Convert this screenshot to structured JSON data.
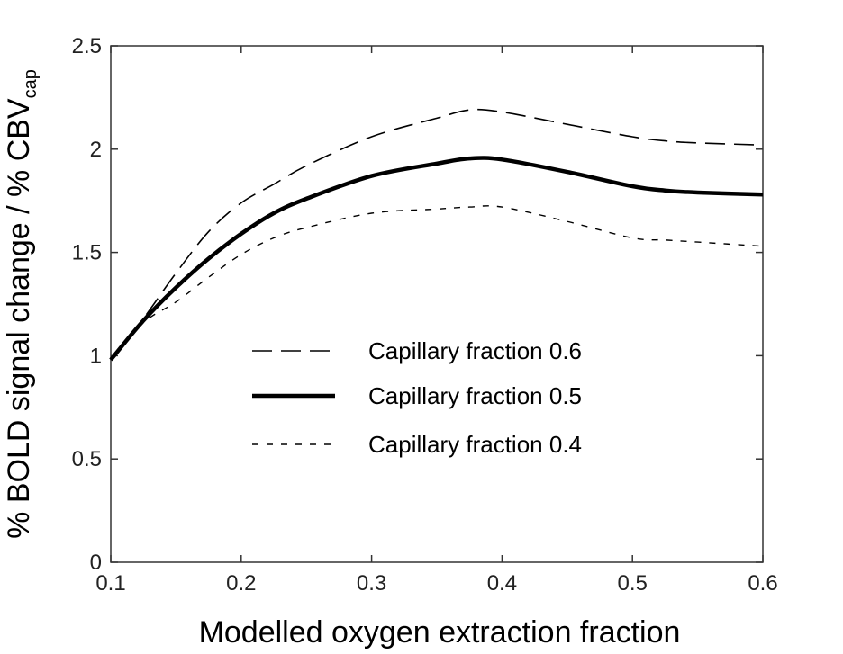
{
  "chart_data": {
    "type": "line",
    "title": "",
    "xlabel": "Modelled oxygen extraction fraction",
    "ylabel": "% BOLD signal change / % CBV",
    "ylabel_subscript": "cap",
    "xlim": [
      0.1,
      0.6
    ],
    "ylim": [
      0,
      2.5
    ],
    "xticks": [
      "0.1",
      "0.2",
      "0.3",
      "0.4",
      "0.5",
      "0.6"
    ],
    "yticks": [
      "0",
      "0.5",
      "1",
      "1.5",
      "2",
      "2.5"
    ],
    "grid": false,
    "legend_position": "center",
    "series": [
      {
        "name": "Capillary fraction 0.6",
        "style": "dashed",
        "x": [
          0.1,
          0.125,
          0.15,
          0.175,
          0.2,
          0.225,
          0.25,
          0.3,
          0.35,
          0.375,
          0.4,
          0.45,
          0.5,
          0.525,
          0.55,
          0.6
        ],
        "y": [
          0.98,
          1.18,
          1.4,
          1.6,
          1.74,
          1.83,
          1.92,
          2.06,
          2.15,
          2.19,
          2.18,
          2.12,
          2.06,
          2.04,
          2.03,
          2.02
        ]
      },
      {
        "name": "Capillary fraction 0.5",
        "style": "solid-thick",
        "x": [
          0.1,
          0.125,
          0.15,
          0.175,
          0.2,
          0.225,
          0.25,
          0.3,
          0.35,
          0.375,
          0.4,
          0.45,
          0.5,
          0.525,
          0.55,
          0.6
        ],
        "y": [
          0.98,
          1.17,
          1.33,
          1.47,
          1.59,
          1.69,
          1.76,
          1.87,
          1.93,
          1.955,
          1.95,
          1.89,
          1.82,
          1.8,
          1.79,
          1.78
        ]
      },
      {
        "name": "Capillary fraction 0.4",
        "style": "dotted",
        "x": [
          0.1,
          0.125,
          0.15,
          0.175,
          0.2,
          0.225,
          0.25,
          0.3,
          0.35,
          0.375,
          0.4,
          0.45,
          0.5,
          0.525,
          0.55,
          0.6
        ],
        "y": [
          0.98,
          1.16,
          1.26,
          1.38,
          1.49,
          1.57,
          1.62,
          1.69,
          1.71,
          1.72,
          1.72,
          1.65,
          1.57,
          1.56,
          1.55,
          1.53
        ]
      }
    ]
  }
}
